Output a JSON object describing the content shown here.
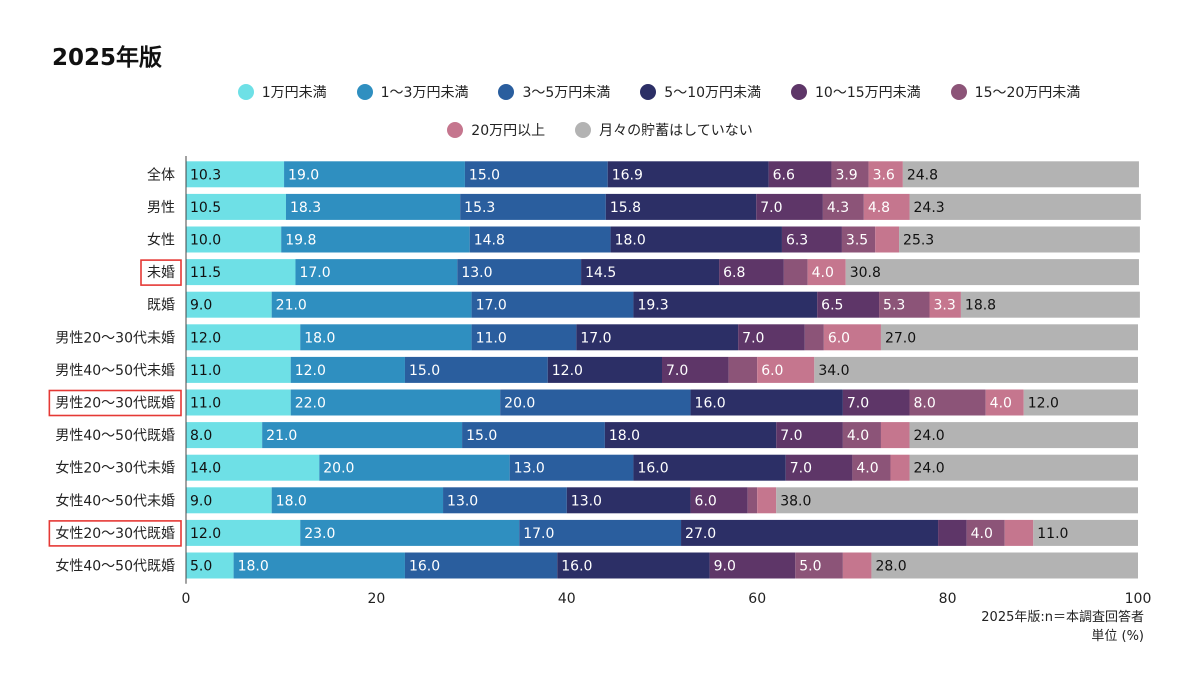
{
  "title": "2025年版",
  "notes": [
    "2025年版:n＝本調査回答者",
    "単位 (%)"
  ],
  "colors": {
    "series": [
      "#6ee0e6",
      "#2f8fc0",
      "#2a5e9e",
      "#2c2f66",
      "#5e3668",
      "#8c5478",
      "#c5768e",
      "#b3b3b3"
    ],
    "highlight_box": "#e53935"
  },
  "chart_data": {
    "type": "bar",
    "orientation": "horizontal",
    "stacked": true,
    "title": "2025年版",
    "xlabel": "",
    "ylabel": "",
    "xlim": [
      0,
      100
    ],
    "xticks": [
      0,
      20,
      40,
      60,
      80,
      100
    ],
    "legend_position": "top",
    "categories": [
      "全体",
      "男性",
      "女性",
      "未婚",
      "既婚",
      "男性20〜30代未婚",
      "男性40〜50代未婚",
      "男性20〜30代既婚",
      "男性40〜50代既婚",
      "女性20〜30代未婚",
      "女性40〜50代未婚",
      "女性20〜30代既婚",
      "女性40〜50代既婚"
    ],
    "highlighted_categories": [
      "未婚",
      "男性20〜30代既婚",
      "女性20〜30代既婚"
    ],
    "series": [
      {
        "name": "1万円未満",
        "values": [
          10.3,
          10.5,
          10.0,
          11.5,
          9.0,
          12.0,
          11.0,
          11.0,
          8.0,
          14.0,
          9.0,
          12.0,
          5.0
        ],
        "labels": [
          "10.3",
          "10.5",
          "10.0",
          "11.5",
          "9.0",
          "12.0",
          "11.0",
          "11.0",
          "8.0",
          "14.0",
          "9.0",
          "12.0",
          "5.0"
        ]
      },
      {
        "name": "1〜3万円未満",
        "values": [
          19.0,
          18.3,
          19.8,
          17.0,
          21.0,
          18.0,
          12.0,
          22.0,
          21.0,
          20.0,
          18.0,
          23.0,
          18.0
        ],
        "labels": [
          "19.0",
          "18.3",
          "19.8",
          "17.0",
          "21.0",
          "18.0",
          "12.0",
          "22.0",
          "21.0",
          "20.0",
          "18.0",
          "23.0",
          "18.0"
        ]
      },
      {
        "name": "3〜5万円未満",
        "values": [
          15.0,
          15.3,
          14.8,
          13.0,
          17.0,
          11.0,
          15.0,
          20.0,
          15.0,
          13.0,
          13.0,
          17.0,
          16.0
        ],
        "labels": [
          "15.0",
          "15.3",
          "14.8",
          "13.0",
          "17.0",
          "11.0",
          "15.0",
          "20.0",
          "15.0",
          "13.0",
          "13.0",
          "17.0",
          "16.0"
        ]
      },
      {
        "name": "5〜10万円未満",
        "values": [
          16.9,
          15.8,
          18.0,
          14.5,
          19.3,
          17.0,
          12.0,
          16.0,
          18.0,
          16.0,
          13.0,
          27.0,
          16.0
        ],
        "labels": [
          "16.9",
          "15.8",
          "18.0",
          "14.5",
          "19.3",
          "17.0",
          "12.0",
          "16.0",
          "18.0",
          "16.0",
          "13.0",
          "27.0",
          "16.0"
        ]
      },
      {
        "name": "10〜15万円未満",
        "values": [
          6.6,
          7.0,
          6.3,
          6.8,
          6.5,
          7.0,
          7.0,
          7.0,
          7.0,
          7.0,
          6.0,
          3.0,
          9.0
        ],
        "labels": [
          "6.6",
          "7.0",
          "6.3",
          "6.8",
          "6.5",
          "7.0",
          "7.0",
          "7.0",
          "7.0",
          "7.0",
          "6.0",
          "",
          "9.0"
        ]
      },
      {
        "name": "15〜20万円未満",
        "values": [
          3.9,
          4.3,
          3.5,
          2.5,
          5.3,
          2.0,
          3.0,
          8.0,
          4.0,
          4.0,
          1.0,
          4.0,
          5.0
        ],
        "labels": [
          "3.9",
          "4.3",
          "3.5",
          "",
          "5.3",
          "",
          "",
          "8.0",
          "4.0",
          "4.0",
          "",
          "4.0",
          "5.0"
        ]
      },
      {
        "name": "20万円以上",
        "values": [
          3.6,
          4.8,
          2.5,
          4.0,
          3.3,
          6.0,
          6.0,
          4.0,
          3.0,
          2.0,
          2.0,
          3.0,
          3.0
        ],
        "labels": [
          "3.6",
          "4.8",
          "",
          "4.0",
          "3.3",
          "6.0",
          "6.0",
          "4.0",
          "",
          "",
          "",
          "",
          ""
        ]
      },
      {
        "name": "月々の貯蓄はしていない",
        "values": [
          24.8,
          24.3,
          25.3,
          30.8,
          18.8,
          27.0,
          34.0,
          12.0,
          24.0,
          24.0,
          38.0,
          11.0,
          28.0
        ],
        "labels": [
          "24.8",
          "24.3",
          "25.3",
          "30.8",
          "18.8",
          "27.0",
          "34.0",
          "12.0",
          "24.0",
          "24.0",
          "38.0",
          "11.0",
          "28.0"
        ]
      }
    ]
  }
}
